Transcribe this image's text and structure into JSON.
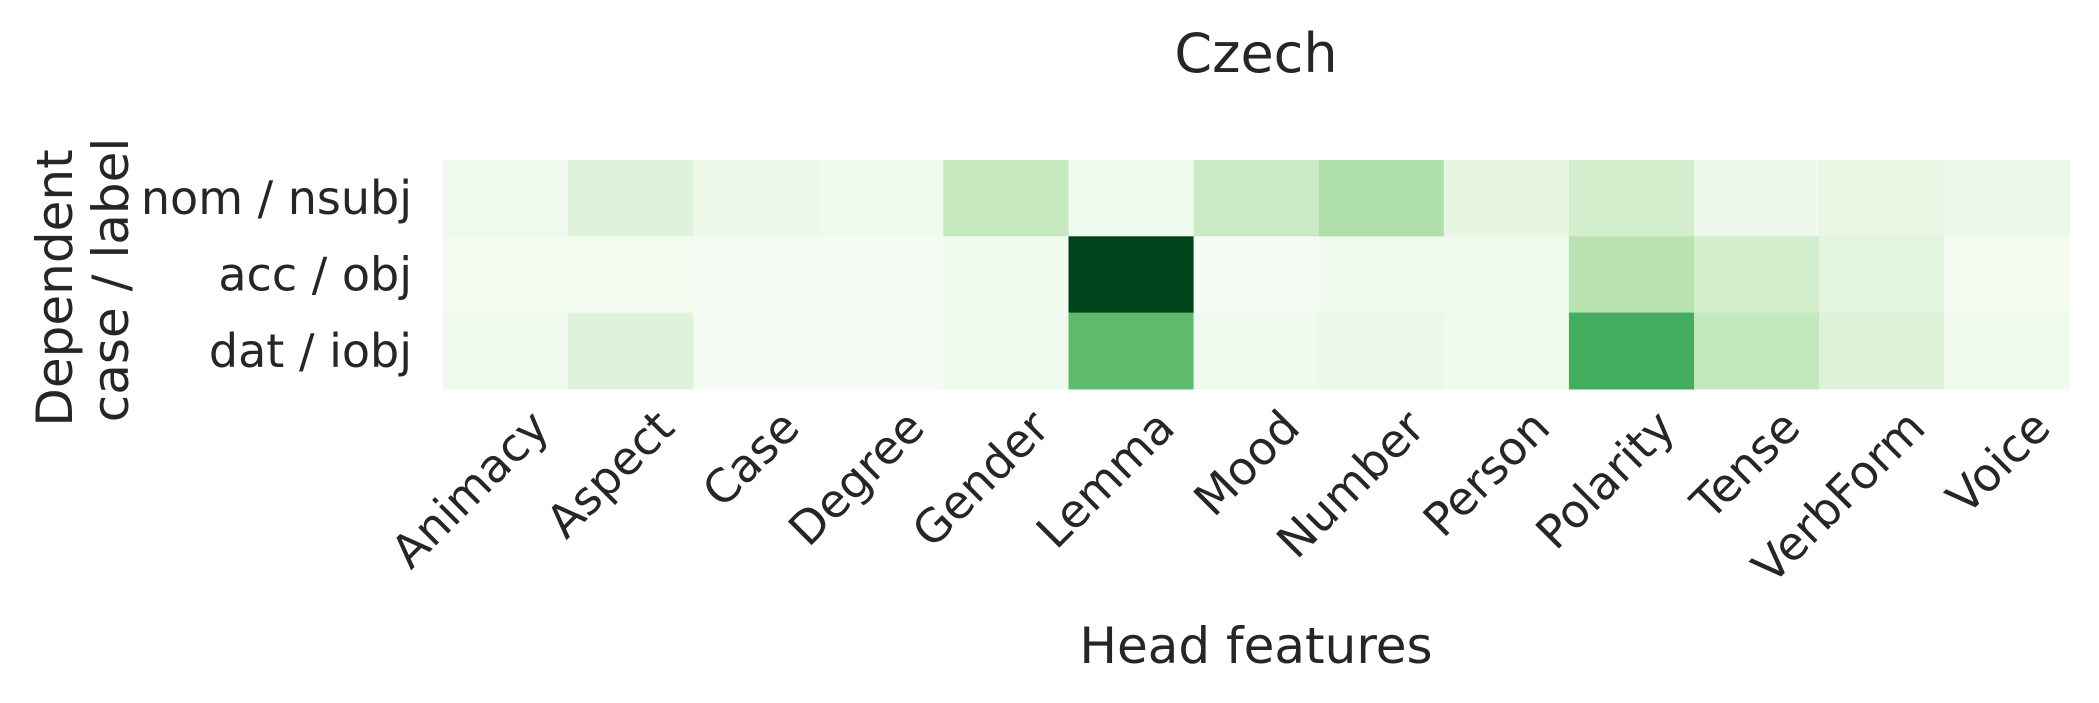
{
  "chart_data": {
    "type": "heatmap",
    "title": "Czech",
    "xlabel": "Head features",
    "ylabel_lines": [
      "Dependent",
      "case / label"
    ],
    "x_categories": [
      "Animacy",
      "Aspect",
      "Case",
      "Degree",
      "Gender",
      "Lemma",
      "Mood",
      "Number",
      "Person",
      "Polarity",
      "Tense",
      "VerbForm",
      "Voice"
    ],
    "y_categories": [
      "nom / nsubj",
      "acc / obj",
      "dat / iobj"
    ],
    "colormap": "Greens",
    "values": [
      [
        0.05,
        0.15,
        0.07,
        0.04,
        0.25,
        0.04,
        0.24,
        0.33,
        0.11,
        0.2,
        0.06,
        0.1,
        0.08
      ],
      [
        0.03,
        0.03,
        0.02,
        0.02,
        0.04,
        1.0,
        0.02,
        0.05,
        0.05,
        0.3,
        0.2,
        0.13,
        0.03
      ],
      [
        0.05,
        0.15,
        0.02,
        0.02,
        0.05,
        0.55,
        0.04,
        0.08,
        0.04,
        0.62,
        0.26,
        0.16,
        0.04
      ]
    ],
    "grid": false,
    "colorbar": false
  }
}
